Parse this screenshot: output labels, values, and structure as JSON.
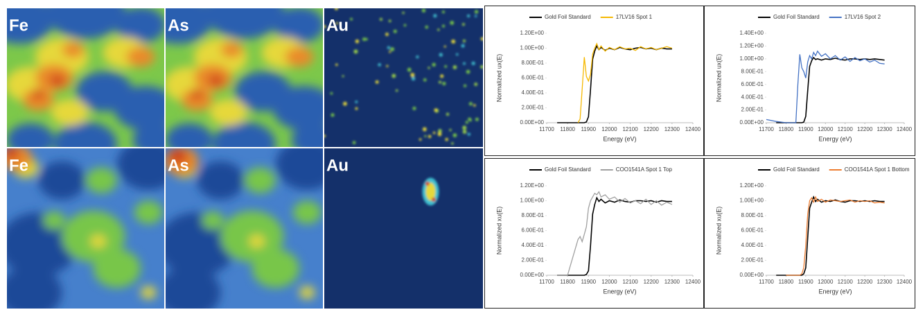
{
  "panels": [
    {
      "label": "Fe"
    },
    {
      "label": "As"
    },
    {
      "label": "Au"
    },
    {
      "label": "Fe"
    },
    {
      "label": "As"
    },
    {
      "label": "Au"
    }
  ],
  "chart_data": [
    {
      "type": "line",
      "xlabel": "Energy (eV)",
      "ylabel": "Normalized ux(E)",
      "x": [
        11700,
        11750,
        11800,
        11850,
        11860,
        11870,
        11880,
        11890,
        11900,
        11910,
        11920,
        11930,
        11940,
        11950,
        11960,
        11980,
        12000,
        12025,
        12050,
        12075,
        12100,
        12125,
        12150,
        12175,
        12200,
        12225,
        12250,
        12275,
        12300
      ],
      "xlim": [
        11700,
        12400
      ],
      "xticks": [
        11700,
        11800,
        11900,
        12000,
        12100,
        12200,
        12300,
        12400
      ],
      "ylim": [
        0,
        1.2
      ],
      "yticks": [
        {
          "value": 0,
          "label": "0.00E+00"
        },
        {
          "value": 0.2,
          "label": "2.00E-01"
        },
        {
          "value": 0.4,
          "label": "4.00E-01"
        },
        {
          "value": 0.6,
          "label": "6.00E-01"
        },
        {
          "value": 0.8,
          "label": "8.00E-01"
        },
        {
          "value": 1.0,
          "label": "1.00E+00"
        },
        {
          "value": 1.2,
          "label": "1.20E+00"
        }
      ],
      "series": [
        {
          "name": "Gold Foil Standard",
          "color": "#000000",
          "values": [
            null,
            0,
            0,
            0,
            0,
            0,
            0,
            0.01,
            0.08,
            0.45,
            0.85,
            0.96,
            1.03,
            0.98,
            1.01,
            0.97,
            1.0,
            0.98,
            1.01,
            0.99,
            0.98,
            1.0,
            1.01,
            0.99,
            1.0,
            0.98,
            1.0,
            0.99,
            0.99
          ]
        },
        {
          "name": "17LV16 Spot 1",
          "color": "#f5b800",
          "values": [
            null,
            null,
            null,
            0,
            0.05,
            0.45,
            0.88,
            0.62,
            0.56,
            0.65,
            0.92,
            1.0,
            1.06,
            0.98,
            1.03,
            0.96,
            1.01,
            0.98,
            1.02,
            0.99,
            1.0,
            0.97,
            1.02,
            0.99,
            1.01,
            0.98,
            1.0,
            1.02,
            1.0
          ]
        }
      ]
    },
    {
      "type": "line",
      "xlabel": "Energy (eV)",
      "ylabel": "Normalized ux(E)",
      "x": [
        11700,
        11750,
        11800,
        11850,
        11860,
        11870,
        11880,
        11890,
        11900,
        11910,
        11920,
        11930,
        11940,
        11950,
        11960,
        11980,
        12000,
        12025,
        12050,
        12075,
        12100,
        12125,
        12150,
        12175,
        12200,
        12225,
        12250,
        12275,
        12300
      ],
      "xlim": [
        11700,
        12400
      ],
      "xticks": [
        11700,
        11800,
        11900,
        12000,
        12100,
        12200,
        12300,
        12400
      ],
      "ylim": [
        0,
        1.4
      ],
      "yticks": [
        {
          "value": 0,
          "label": "0.00E+00"
        },
        {
          "value": 0.2,
          "label": "2.00E-01"
        },
        {
          "value": 0.4,
          "label": "4.00E-01"
        },
        {
          "value": 0.6,
          "label": "6.00E-01"
        },
        {
          "value": 0.8,
          "label": "8.00E-01"
        },
        {
          "value": 1.0,
          "label": "1.00E+00"
        },
        {
          "value": 1.2,
          "label": "1.20E+00"
        },
        {
          "value": 1.4,
          "label": "1.40E+00"
        }
      ],
      "series": [
        {
          "name": "Gold Foil Standard",
          "color": "#000000",
          "values": [
            null,
            0,
            0,
            0,
            0,
            0,
            0,
            0.01,
            0.1,
            0.5,
            0.88,
            0.97,
            1.02,
            0.99,
            1.0,
            0.98,
            1.0,
            0.99,
            1.01,
            0.99,
            0.98,
            1.0,
            1.0,
            0.99,
            1.0,
            0.99,
            1.0,
            0.99,
            0.98
          ]
        },
        {
          "name": "17LV16 Spot 2",
          "color": "#4472c4",
          "values": [
            0.05,
            0.02,
            0,
            0,
            0.6,
            1.07,
            0.86,
            0.8,
            0.7,
            0.95,
            1.05,
            1.0,
            1.1,
            1.05,
            1.12,
            1.04,
            1.08,
            1.0,
            1.05,
            0.98,
            1.03,
            0.96,
            1.02,
            0.97,
            1.0,
            0.95,
            0.98,
            0.93,
            0.92
          ]
        }
      ]
    },
    {
      "type": "line",
      "xlabel": "Energy (eV)",
      "ylabel": "Normalized xu(E)",
      "x": [
        11700,
        11750,
        11800,
        11850,
        11860,
        11870,
        11880,
        11890,
        11900,
        11910,
        11920,
        11930,
        11940,
        11950,
        11960,
        11980,
        12000,
        12025,
        12050,
        12075,
        12100,
        12125,
        12150,
        12175,
        12200,
        12225,
        12250,
        12275,
        12300
      ],
      "xlim": [
        11700,
        12400
      ],
      "xticks": [
        11700,
        11800,
        11900,
        12000,
        12100,
        12200,
        12300,
        12400
      ],
      "ylim": [
        0,
        1.2
      ],
      "yticks": [
        {
          "value": 0,
          "label": "0.00E+00"
        },
        {
          "value": 0.2,
          "label": "2.00E-01"
        },
        {
          "value": 0.4,
          "label": "4.00E-01"
        },
        {
          "value": 0.6,
          "label": "6.00E-01"
        },
        {
          "value": 0.8,
          "label": "8.00E-01"
        },
        {
          "value": 1.0,
          "label": "1.00E+00"
        },
        {
          "value": 1.2,
          "label": "1.20E+00"
        }
      ],
      "series": [
        {
          "name": "Gold Foil Standard",
          "color": "#000000",
          "values": [
            null,
            0,
            0,
            0,
            0,
            0,
            0,
            0.01,
            0.06,
            0.4,
            0.82,
            0.95,
            1.04,
            0.99,
            1.02,
            0.97,
            1.0,
            0.98,
            1.01,
            0.99,
            0.98,
            1.0,
            1.0,
            0.99,
            1.0,
            0.98,
            1.0,
            0.99,
            0.99
          ]
        },
        {
          "name": "COO1541A Spot 1 Top",
          "color": "#a0a0a0",
          "values": [
            null,
            0,
            0,
            0.48,
            0.52,
            0.45,
            0.55,
            0.65,
            0.9,
            1.0,
            1.05,
            1.1,
            1.08,
            1.12,
            1.05,
            1.08,
            1.02,
            1.05,
            0.98,
            1.03,
            0.97,
            1.0,
            0.96,
            1.02,
            0.95,
            1.0,
            0.94,
            0.98,
            0.95
          ]
        }
      ]
    },
    {
      "type": "line",
      "xlabel": "Energy (eV)",
      "ylabel": "Normalized xu(E)",
      "x": [
        11700,
        11750,
        11800,
        11850,
        11860,
        11870,
        11880,
        11890,
        11900,
        11910,
        11920,
        11930,
        11940,
        11950,
        11960,
        11980,
        12000,
        12025,
        12050,
        12075,
        12100,
        12125,
        12150,
        12175,
        12200,
        12225,
        12250,
        12275,
        12300
      ],
      "xlim": [
        11700,
        12400
      ],
      "xticks": [
        11700,
        11800,
        11900,
        12000,
        12100,
        12200,
        12300,
        12400
      ],
      "ylim": [
        0,
        1.2
      ],
      "yticks": [
        {
          "value": 0,
          "label": "0.00E+00"
        },
        {
          "value": 0.2,
          "label": "2.00E-01"
        },
        {
          "value": 0.4,
          "label": "4.00E-01"
        },
        {
          "value": 0.6,
          "label": "6.00E-01"
        },
        {
          "value": 0.8,
          "label": "8.00E-01"
        },
        {
          "value": 1.0,
          "label": "1.00E+00"
        },
        {
          "value": 1.2,
          "label": "1.20E+00"
        }
      ],
      "series": [
        {
          "name": "Gold Foil Standard",
          "color": "#000000",
          "values": [
            null,
            0,
            0,
            0,
            0,
            0,
            0,
            0.02,
            0.1,
            0.5,
            0.9,
            0.98,
            1.05,
            0.99,
            1.02,
            0.98,
            1.0,
            0.99,
            1.01,
            0.99,
            0.98,
            1.0,
            1.0,
            0.99,
            1.0,
            0.99,
            1.0,
            0.99,
            0.99
          ]
        },
        {
          "name": "COO1541A Spot 1 Bottom",
          "color": "#ed7d31",
          "values": [
            null,
            null,
            0,
            0,
            0,
            0,
            0.02,
            0.1,
            0.4,
            0.82,
            1.0,
            1.04,
            0.98,
            1.05,
            0.99,
            1.02,
            0.98,
            1.01,
            1.0,
            0.99,
            1.0,
            1.01,
            0.98,
            1.0,
            0.99,
            1.0,
            0.97,
            0.98,
            0.97
          ]
        }
      ]
    }
  ]
}
